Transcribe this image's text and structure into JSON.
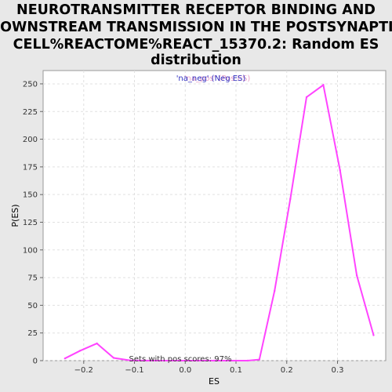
{
  "chart_data": {
    "type": "line",
    "title_lines": [
      "NEUROTRANSMITTER RECEPTOR BINDING AND",
      "DOWNSTREAM TRANSMISSION IN THE POSTSYNAPTIC",
      "CELL%REACTOME%REACT_15370.2: Random ES",
      "distribution"
    ],
    "xlabel": "ES",
    "ylabel": "P(ES)",
    "xlim": [
      -0.28,
      0.395
    ],
    "ylim": [
      0,
      262
    ],
    "xticks": [
      -0.2,
      -0.1,
      0.0,
      0.1,
      0.2,
      0.3
    ],
    "xtick_labels": [
      "−0.2",
      "−0.1",
      "0.0",
      "0.1",
      "0.2",
      "0.3"
    ],
    "yticks": [
      0,
      25,
      50,
      75,
      100,
      125,
      150,
      175,
      200,
      225,
      250
    ],
    "ytick_labels": [
      "0",
      "25",
      "50",
      "75",
      "100",
      "125",
      "150",
      "175",
      "200",
      "225",
      "250"
    ],
    "grid": true,
    "legend_position": "top-center",
    "legend_entries": [
      {
        "text": "'na_pos' (Pos ES)",
        "color": "#e8a0c8"
      },
      {
        "text": "'na_neg' (Neg ES)",
        "color": "#3030c0"
      }
    ],
    "annotation": "Sets with pos scores: 97%",
    "series": [
      {
        "color": "#ff44ff",
        "x": [
          -0.237,
          -0.207,
          -0.174,
          -0.141,
          -0.108,
          -0.075,
          -0.042,
          -0.009,
          0.024,
          0.057,
          0.09,
          0.123,
          0.146,
          0.176,
          0.207,
          0.239,
          0.272,
          0.305,
          0.338,
          0.371
        ],
        "y": [
          2,
          9,
          15.5,
          2.5,
          0.2,
          0,
          0,
          0,
          0,
          0,
          0,
          0,
          1,
          63,
          146,
          238,
          249,
          172,
          77,
          23
        ]
      }
    ]
  }
}
